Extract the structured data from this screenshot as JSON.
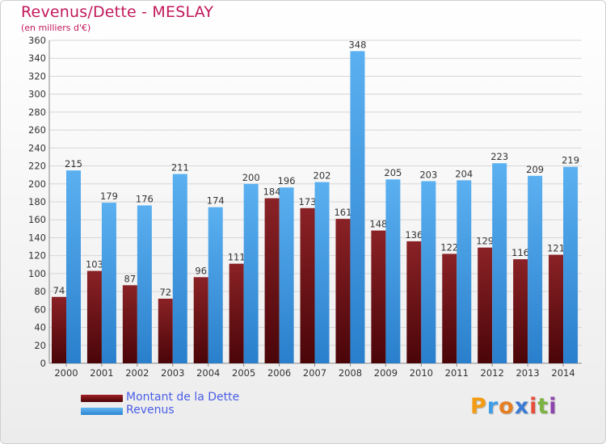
{
  "title": "Revenus/Dette - MESLAY",
  "subtitle": "(en milliers d'€)",
  "chart_data": {
    "type": "bar",
    "title": "Revenus/Dette - MESLAY",
    "ylabel": "(en milliers d'€)",
    "xlabel": "",
    "ylim": [
      0,
      360
    ],
    "ytick_step": 20,
    "grid": true,
    "legend": "bottom",
    "categories": [
      "2000",
      "2001",
      "2002",
      "2003",
      "2004",
      "2005",
      "2006",
      "2007",
      "2008",
      "2009",
      "2010",
      "2011",
      "2012",
      "2013",
      "2014"
    ],
    "series": [
      {
        "name": "Montant de la Dette",
        "color": "#7a1216",
        "values": [
          74,
          103,
          87,
          72,
          96,
          111,
          184,
          173,
          161,
          148,
          136,
          122,
          129,
          116,
          121
        ]
      },
      {
        "name": "Revenus",
        "color": "#3f9ee8",
        "values": [
          215,
          179,
          176,
          211,
          174,
          200,
          196,
          202,
          348,
          205,
          203,
          204,
          223,
          209,
          219
        ]
      }
    ]
  },
  "legend": {
    "items": [
      {
        "label": "Montant de la Dette",
        "color": "#7a1216"
      },
      {
        "label": "Revenus",
        "color": "#3f9ee8"
      }
    ]
  },
  "logo": {
    "letters": [
      "P",
      "r",
      "o",
      "x",
      "i",
      "t",
      "i"
    ],
    "colors": [
      "#f39c12",
      "#3f9ee8",
      "#e67e22",
      "#3a7bd5",
      "#e74c3c",
      "#7cb342",
      "#8e44ad"
    ]
  }
}
